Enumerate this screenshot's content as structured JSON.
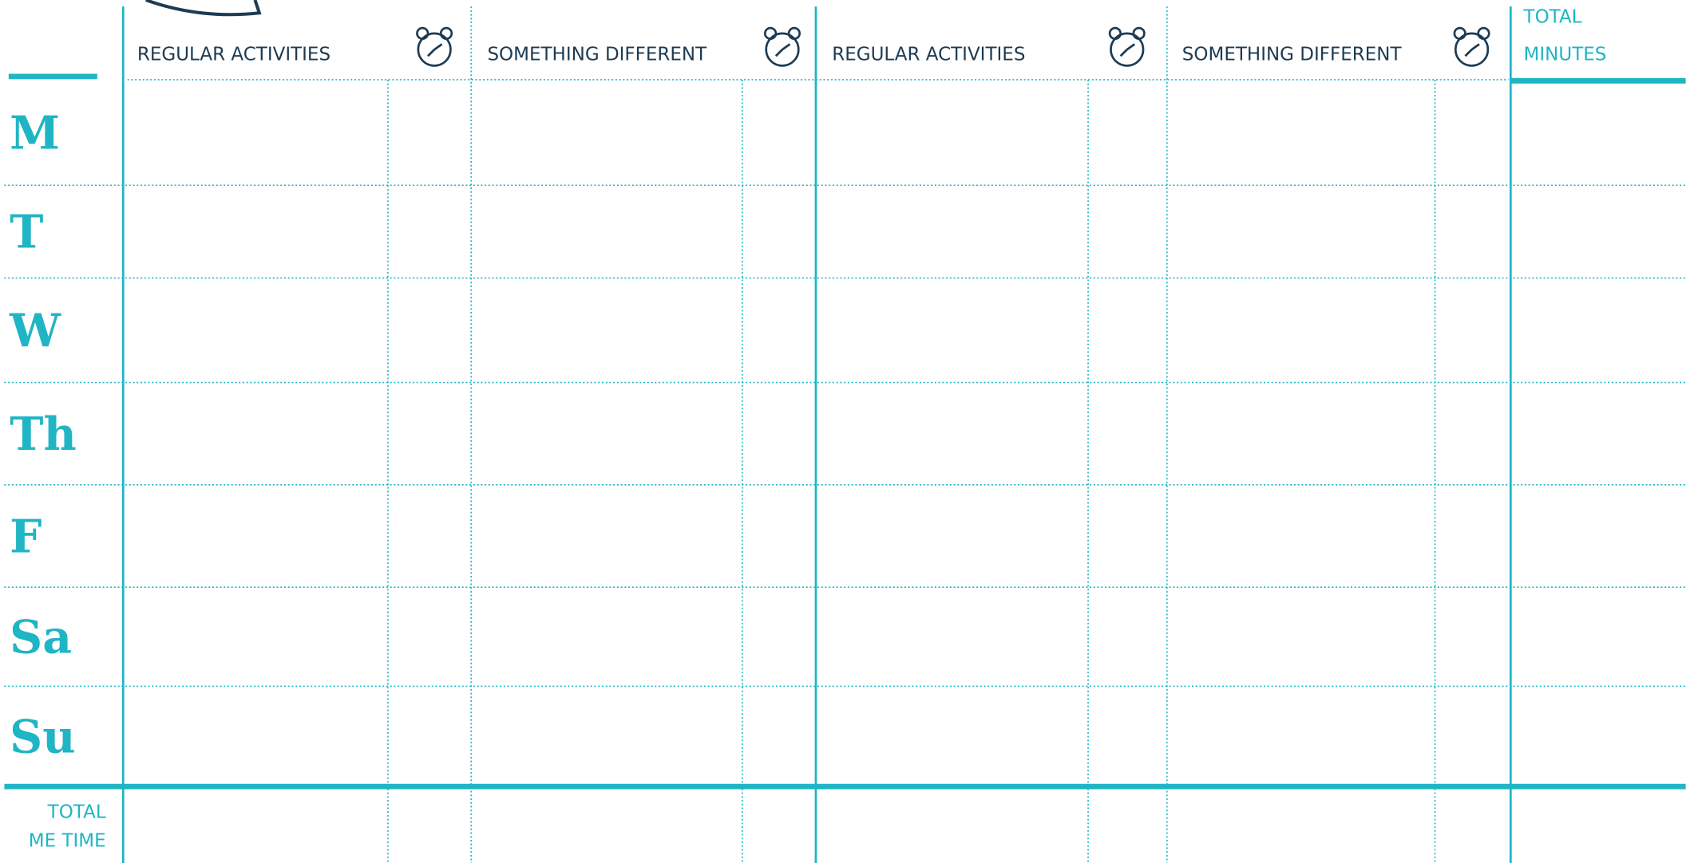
{
  "header": {
    "columns": [
      "REGULAR ACTIVITIES",
      "SOMETHING DIFFERENT",
      "REGULAR ACTIVITIES",
      "SOMETHING DIFFERENT"
    ],
    "total_column": [
      "TOTAL",
      "MINUTES"
    ]
  },
  "rows": [
    "M",
    "T",
    "W",
    "Th",
    "F",
    "Sa",
    "Su"
  ],
  "footer": {
    "label": [
      "TOTAL",
      "ME TIME"
    ]
  }
}
